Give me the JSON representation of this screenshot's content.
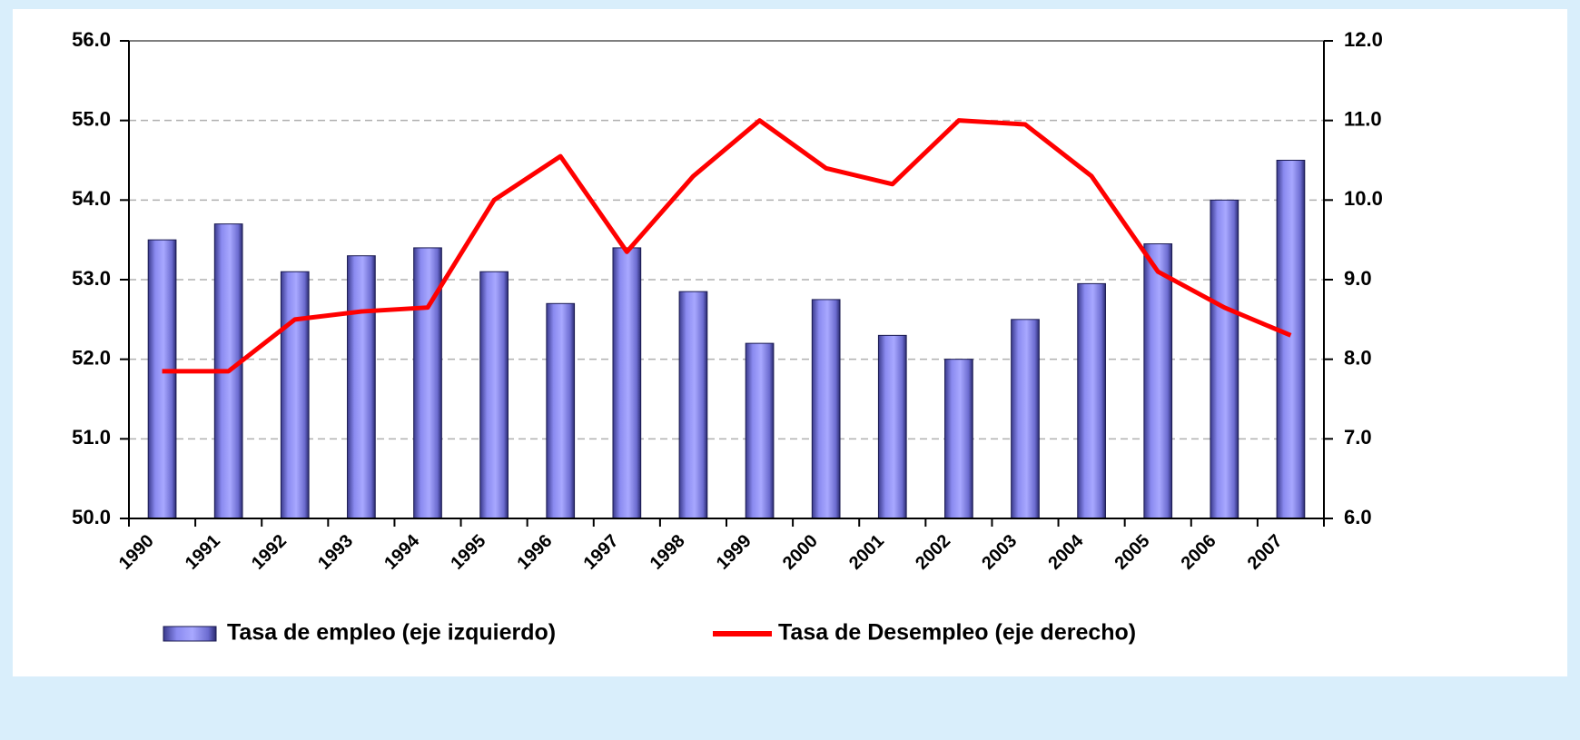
{
  "chart_data": {
    "type": "bar",
    "categories": [
      "1990",
      "1991",
      "1992",
      "1993",
      "1994",
      "1995",
      "1996",
      "1997",
      "1998",
      "1999",
      "2000",
      "2001",
      "2002",
      "2003",
      "2004",
      "2005",
      "2006",
      "2007"
    ],
    "series": [
      {
        "name": "Tasa de empleo (eje izquierdo)",
        "color": "#9999ff",
        "type": "bar",
        "values": [
          53.5,
          53.7,
          53.1,
          53.3,
          53.4,
          53.1,
          52.7,
          53.4,
          52.85,
          52.2,
          52.75,
          52.3,
          52.0,
          52.5,
          52.95,
          53.45,
          54.0,
          54.5
        ]
      },
      {
        "name": "Tasa de Desempleo (eje derecho)",
        "color": "#ff0000",
        "type": "line",
        "axis": "y2",
        "values": [
          7.85,
          7.85,
          8.5,
          8.6,
          8.65,
          10.0,
          10.55,
          9.35,
          10.3,
          11.0,
          10.4,
          10.2,
          11.0,
          10.95,
          10.3,
          9.1,
          8.65,
          8.3
        ]
      }
    ],
    "ylim": [
      50,
      56
    ],
    "yticks": [
      {
        "value": 50,
        "label": "50.0"
      },
      {
        "value": 51,
        "label": "51.0"
      },
      {
        "value": 52,
        "label": "52.0"
      },
      {
        "value": 53,
        "label": "53.0"
      },
      {
        "value": 54,
        "label": "54.0"
      },
      {
        "value": 55,
        "label": "55.0"
      },
      {
        "value": 56,
        "label": "56.0"
      }
    ],
    "y2lim": [
      6,
      12
    ],
    "y2ticks": [
      {
        "value": 6,
        "label": "6.0"
      },
      {
        "value": 7,
        "label": "7.0"
      },
      {
        "value": 8,
        "label": "8.0"
      },
      {
        "value": 9,
        "label": "9.0"
      },
      {
        "value": 10,
        "label": "10.0"
      },
      {
        "value": 11,
        "label": "11.0"
      },
      {
        "value": 12,
        "label": "12.0"
      }
    ],
    "grid": true,
    "legend": "bottom"
  }
}
